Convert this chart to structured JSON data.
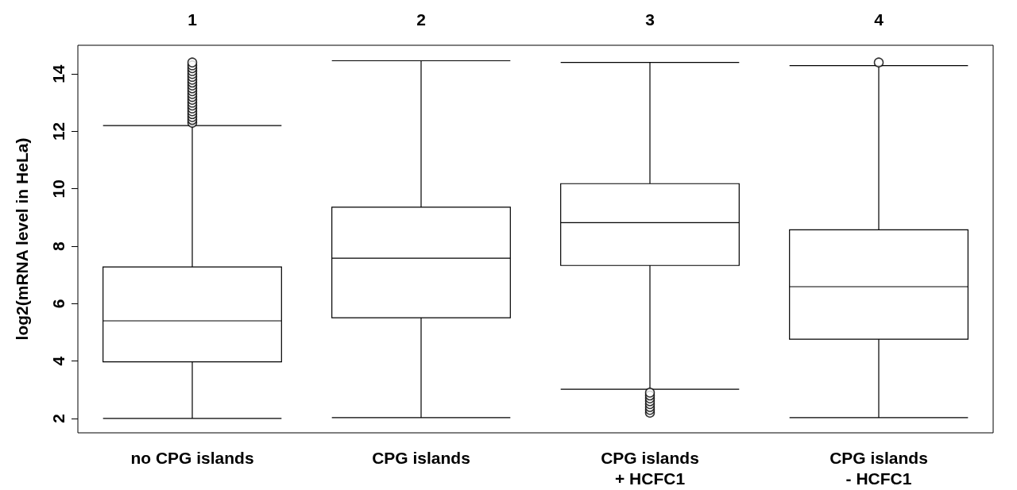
{
  "chart_data": {
    "type": "box",
    "ylabel": "log2(mRNA level in HeLa)",
    "categories": [
      "no CPG islands",
      "CPG islands",
      "CPG islands\n+ HCFC1",
      "CPG islands\n- HCFC1"
    ],
    "boxes": [
      {
        "low": 2,
        "q1": 3.97,
        "median": 5.4,
        "q3": 7.28,
        "high": 12.2,
        "outliers": [
          12.3,
          12.4,
          12.5,
          12.6,
          12.7,
          12.8,
          12.9,
          13.0,
          13.1,
          13.2,
          13.3,
          13.4,
          13.5,
          13.6,
          13.7,
          13.8,
          13.9,
          14.0,
          14.1,
          14.2,
          14.3,
          14.4
        ]
      },
      {
        "low": 2.03,
        "q1": 5.51,
        "median": 7.58,
        "q3": 9.36,
        "high": 14.46
      },
      {
        "low": 3.02,
        "q1": 7.33,
        "median": 8.82,
        "q3": 10.18,
        "high": 14.4,
        "outliers": [
          2.2,
          2.3,
          2.4,
          2.5,
          2.6,
          2.7,
          2.8,
          2.9
        ]
      },
      {
        "low": 2.03,
        "q1": 4.76,
        "median": 6.59,
        "q3": 8.57,
        "high": 14.29,
        "outliers": [
          14.4
        ]
      }
    ],
    "color": "#000000",
    "ylim": [
      1.5,
      15
    ],
    "yticks": [
      2,
      4,
      6,
      8,
      10,
      12,
      14
    ],
    "annotations": [
      "1",
      "2",
      "3",
      "4"
    ]
  }
}
